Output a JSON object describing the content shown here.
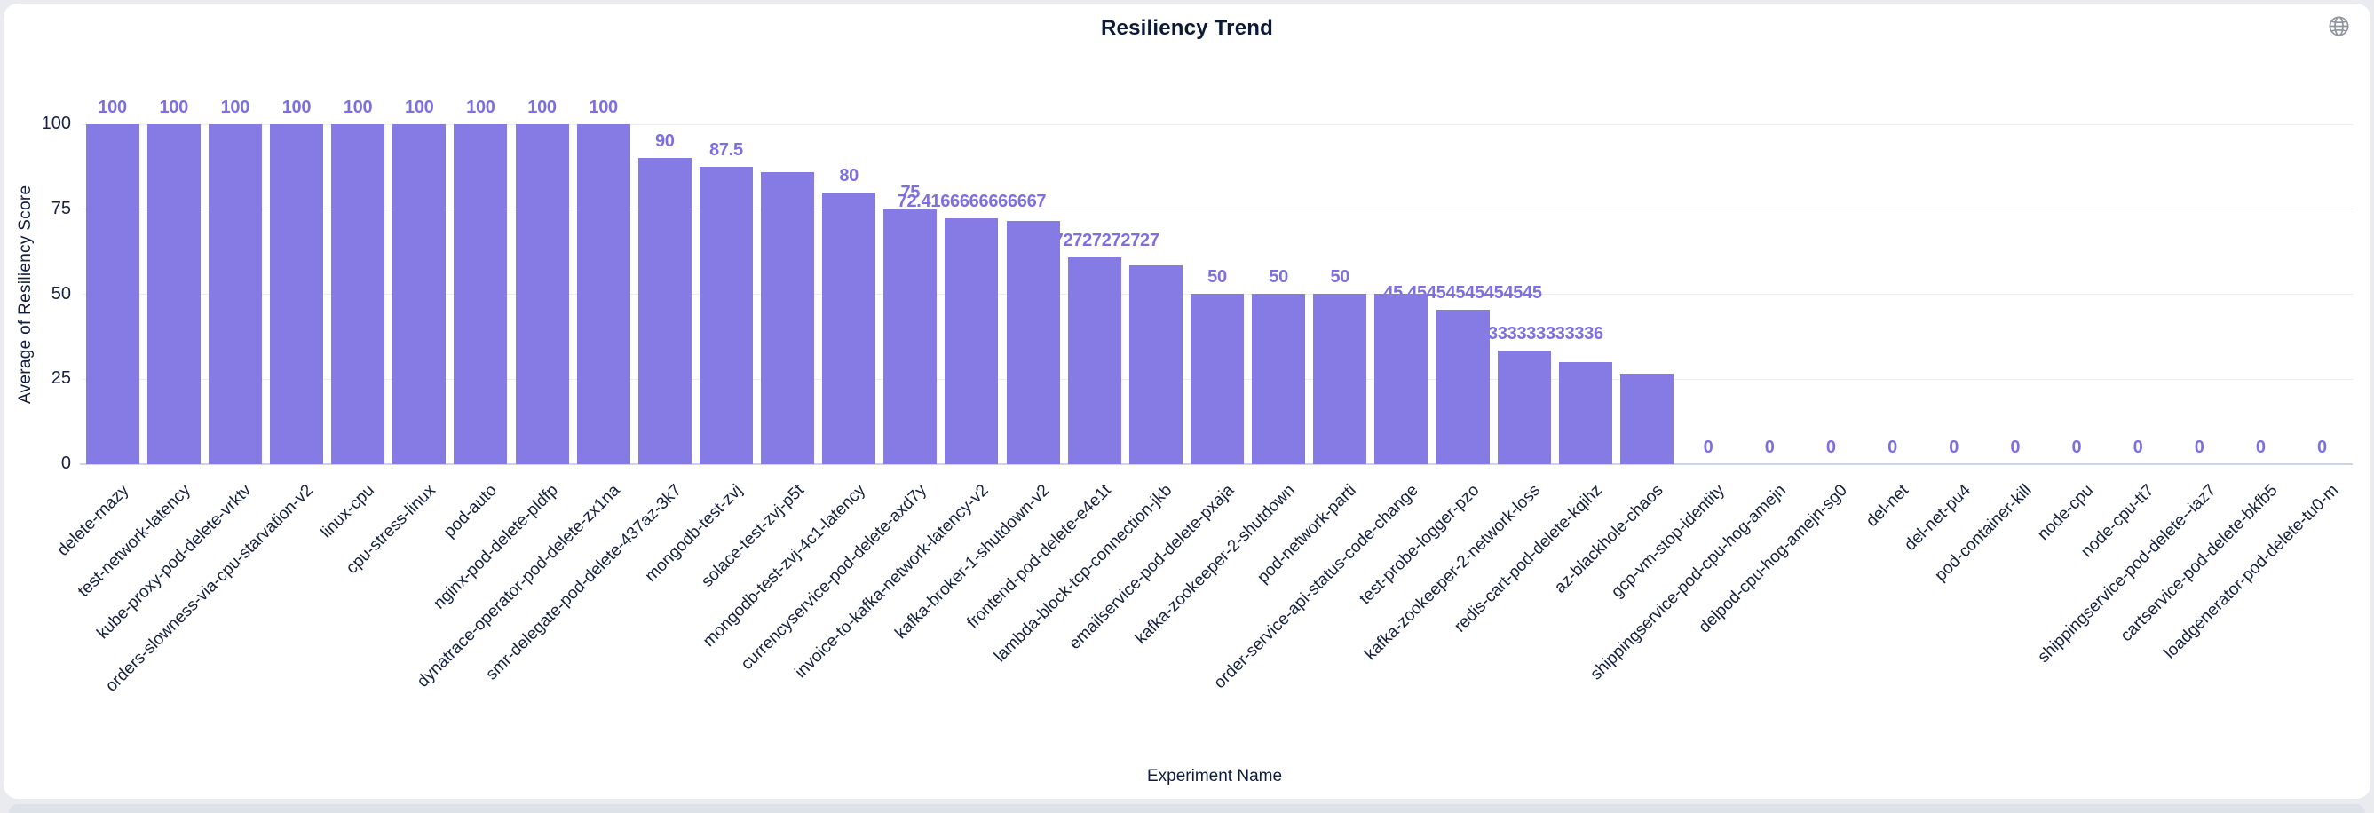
{
  "page": {
    "background": "#e9ebef",
    "card_background": "#ffffff"
  },
  "header": {
    "globe_icon": "globe"
  },
  "chart_data": {
    "type": "bar",
    "title": "Resiliency Trend",
    "xlabel": "Experiment Name",
    "ylabel": "Average of Resiliency Score",
    "ylim": [
      0,
      100
    ],
    "yticks": [
      0,
      25,
      50,
      75,
      100
    ],
    "grid": true,
    "legend_position": "none",
    "bar_color": "#867ae4",
    "value_label_color": "#7e6fe0",
    "categories": [
      "delete-rnazy",
      "test-network-latency",
      "kube-proxy-pod-delete-vrktv",
      "orders-slowness-via-cpu-starvation-v2",
      "linux-cpu",
      "cpu-stress-linux",
      "pod-auto",
      "nginx-pod-delete-pldfp",
      "dynatrace-operator-pod-delete-zx1na",
      "smr-delegate-pod-delete-437az-3k7",
      "mongodb-test-zvj",
      "solace-test-zvj-p5t",
      "mongodb-test-zvj-4c1-latency",
      "currencyservice-pod-delete-axd7y",
      "invoice-to-kafka-network-latency-v2",
      "kafka-broker-1-shutdown-v2",
      "frontend-pod-delete-e4e1t",
      "lambda-block-tcp-connection-jkb",
      "emailservice-pod-delete-pxaja",
      "kafka-zookeeper-2-shutdown",
      "pod-network-parti",
      "order-service-api-status-code-change",
      "test-probe-logger-pzo",
      "kafka-zookeeper-2-network-loss",
      "redis-cart-pod-delete-kqihz",
      "az-blackhole-chaos",
      "gcp-vm-stop-identity",
      "shippingservice-pod-cpu-hog-amejn",
      "delpod-cpu-hog-amejn-sg0",
      "del-net",
      "del-net-pu4",
      "pod-container-kill",
      "node-cpu",
      "node-cpu-tt7",
      "shippingservice-pod-delete--iaz7",
      "cartservice-pod-delete-bkfb5",
      "loadgenerator-pod-delete-tu0-m"
    ],
    "values": [
      100,
      100,
      100,
      100,
      100,
      100,
      100,
      100,
      100,
      90,
      87.5,
      86,
      80,
      75,
      72.4166666666667,
      71.6,
      60.72727272727,
      58.5,
      50,
      50,
      50,
      50,
      45.45454545454545,
      33.33333333333336,
      30,
      26.7,
      0,
      0,
      0,
      0,
      0,
      0,
      0,
      0,
      0,
      0,
      0
    ],
    "value_labels": [
      "100",
      "100",
      "100",
      "100",
      "100",
      "100",
      "100",
      "100",
      "100",
      "90",
      "87.5",
      "",
      "80",
      "75",
      "72.4166666666667",
      "",
      "60.72727272727",
      "",
      "50",
      "50",
      "50",
      "",
      "45.45454545454545",
      "33.33333333333336",
      "",
      "",
      "0",
      "0",
      "0",
      "0",
      "0",
      "0",
      "0",
      "0",
      "0",
      "0",
      "0"
    ]
  }
}
